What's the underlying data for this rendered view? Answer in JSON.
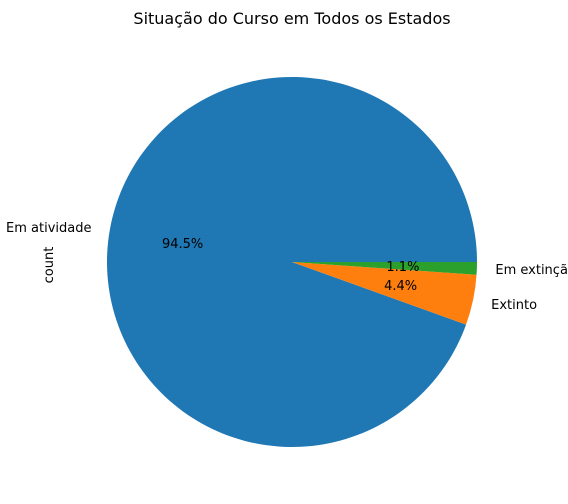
{
  "chart_data": {
    "type": "pie",
    "title": "Situação do Curso em Todos os Estados",
    "ylabel": "count",
    "slices": [
      {
        "label": "Em atividade",
        "pct_label": "94.5%",
        "value": 94.5,
        "color": "#1f77b4"
      },
      {
        "label": "Extinto",
        "pct_label": "4.4%",
        "value": 4.4,
        "color": "#ff7f0e"
      },
      {
        "label": "Em extinção",
        "pct_label": "1.1%",
        "value": 1.1,
        "color": "#2ca02c"
      }
    ],
    "start_angle_deg": 0,
    "direction": "counterclockwise"
  }
}
